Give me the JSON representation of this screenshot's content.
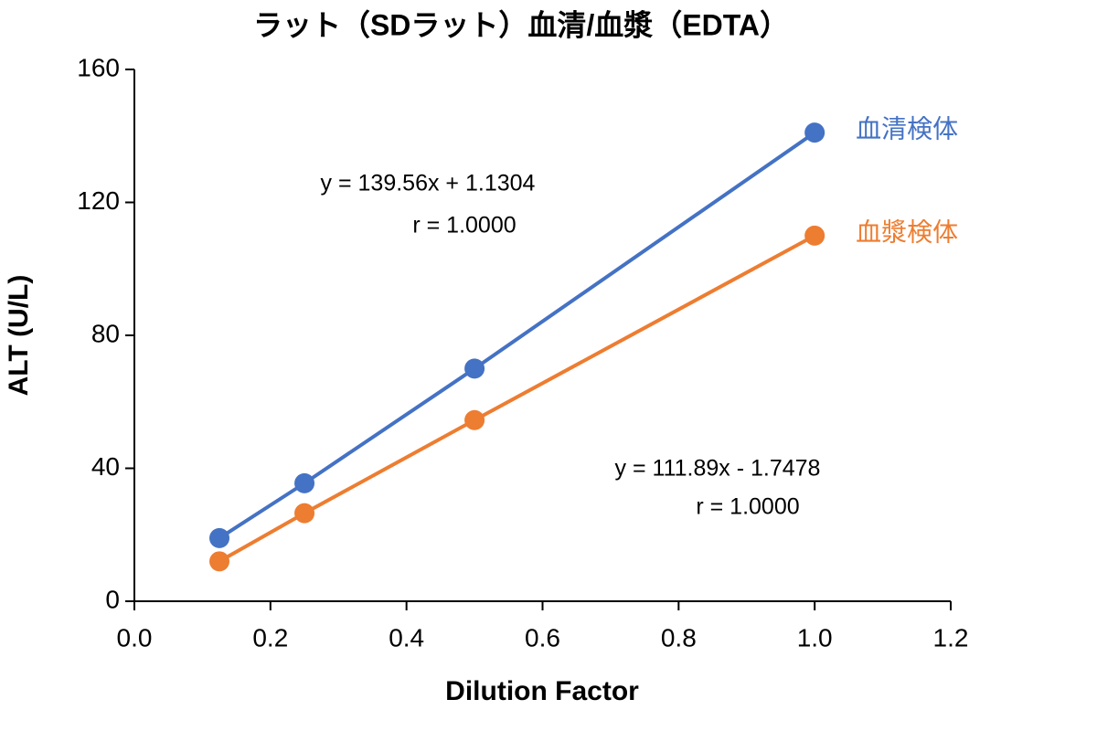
{
  "chart_data": {
    "type": "line",
    "title": "ラット（SDラット）血清/血漿（EDTA）",
    "x_label": "Dilution Factor",
    "y_label": "ALT (U/L)",
    "x": [
      0.125,
      0.25,
      0.5,
      1.0
    ],
    "series": [
      {
        "name": "血清検体",
        "color": "#4472c4",
        "values": [
          19,
          35.5,
          70,
          141
        ],
        "annotation": [
          "y = 139.56x + 1.1304",
          "r = 1.0000"
        ]
      },
      {
        "name": "血漿検体",
        "color": "#ed7d31",
        "values": [
          12,
          26.5,
          54.5,
          110
        ],
        "annotation": [
          "y = 111.89x - 1.7478",
          "r = 1.0000"
        ]
      }
    ],
    "xlim": [
      0,
      1.2
    ],
    "xticks": [
      {
        "value": 0,
        "label": "0.0"
      },
      0.2,
      0.4,
      0.6,
      0.8,
      {
        "value": 1,
        "label": "1.0"
      },
      1.2
    ],
    "ylim": [
      0,
      160
    ],
    "yticks": [
      0,
      40,
      80,
      120,
      160
    ],
    "grid": false
  }
}
